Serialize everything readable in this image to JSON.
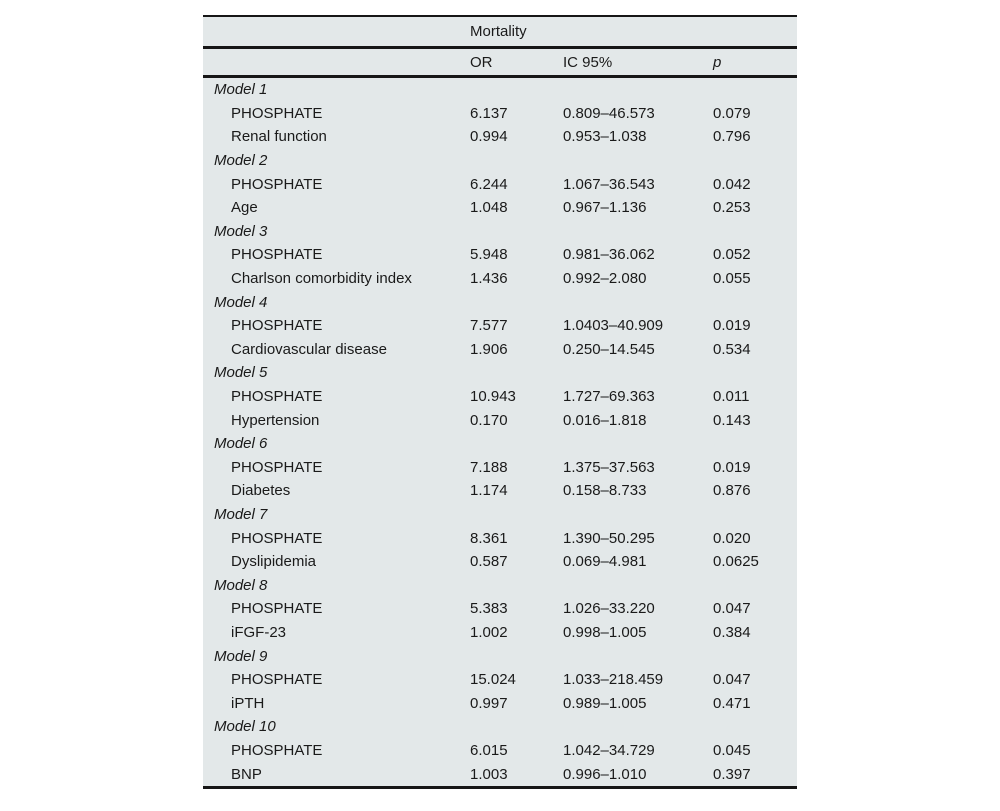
{
  "colors": {
    "page_background": "#ffffff",
    "table_background": "#e3e8e9",
    "rule_color": "#161616",
    "text_color": "#1a1a1a"
  },
  "table": {
    "group_header": "Mortality",
    "columns": {
      "label": "",
      "or": "OR",
      "ic": "IC 95%",
      "p": "p"
    },
    "rows": [
      {
        "type": "model",
        "label": "Model 1",
        "or": "",
        "ic": "",
        "p": ""
      },
      {
        "type": "var",
        "label": "PHOSPHATE",
        "or": "6.137",
        "ic": "0.809–46.573",
        "p": "0.079"
      },
      {
        "type": "var",
        "label": "Renal function",
        "or": "0.994",
        "ic": "0.953–1.038",
        "p": "0.796"
      },
      {
        "type": "model",
        "label": "Model 2",
        "or": "",
        "ic": "",
        "p": ""
      },
      {
        "type": "var",
        "label": "PHOSPHATE",
        "or": "6.244",
        "ic": "1.067–36.543",
        "p": "0.042"
      },
      {
        "type": "var",
        "label": "Age",
        "or": "1.048",
        "ic": "0.967–1.136",
        "p": "0.253"
      },
      {
        "type": "model",
        "label": "Model 3",
        "or": "",
        "ic": "",
        "p": ""
      },
      {
        "type": "var",
        "label": "PHOSPHATE",
        "or": "5.948",
        "ic": "0.981–36.062",
        "p": "0.052"
      },
      {
        "type": "var",
        "label": "Charlson comorbidity index",
        "or": "1.436",
        "ic": "0.992–2.080",
        "p": "0.055"
      },
      {
        "type": "model",
        "label": "Model 4",
        "or": "",
        "ic": "",
        "p": ""
      },
      {
        "type": "var",
        "label": "PHOSPHATE",
        "or": "7.577",
        "ic": "1.0403–40.909",
        "p": "0.019"
      },
      {
        "type": "var",
        "label": "Cardiovascular disease",
        "or": "1.906",
        "ic": "0.250–14.545",
        "p": "0.534"
      },
      {
        "type": "model",
        "label": "Model 5",
        "or": "",
        "ic": "",
        "p": ""
      },
      {
        "type": "var",
        "label": "PHOSPHATE",
        "or": "10.943",
        "ic": "1.727–69.363",
        "p": "0.011"
      },
      {
        "type": "var",
        "label": "Hypertension",
        "or": "0.170",
        "ic": "0.016–1.818",
        "p": "0.143"
      },
      {
        "type": "model",
        "label": "Model 6",
        "or": "",
        "ic": "",
        "p": ""
      },
      {
        "type": "var",
        "label": "PHOSPHATE",
        "or": "7.188",
        "ic": "1.375–37.563",
        "p": "0.019"
      },
      {
        "type": "var",
        "label": "Diabetes",
        "or": "1.174",
        "ic": "0.158–8.733",
        "p": "0.876"
      },
      {
        "type": "model",
        "label": "Model 7",
        "or": "",
        "ic": "",
        "p": ""
      },
      {
        "type": "var",
        "label": "PHOSPHATE",
        "or": "8.361",
        "ic": "1.390–50.295",
        "p": "0.020"
      },
      {
        "type": "var",
        "label": "Dyslipidemia",
        "or": "0.587",
        "ic": "0.069–4.981",
        "p": "0.0625"
      },
      {
        "type": "model",
        "label": "Model 8",
        "or": "",
        "ic": "",
        "p": ""
      },
      {
        "type": "var",
        "label": "PHOSPHATE",
        "or": "5.383",
        "ic": "1.026–33.220",
        "p": "0.047"
      },
      {
        "type": "var",
        "label": "iFGF-23",
        "or": "1.002",
        "ic": "0.998–1.005",
        "p": "0.384"
      },
      {
        "type": "model",
        "label": "Model 9",
        "or": "",
        "ic": "",
        "p": ""
      },
      {
        "type": "var",
        "label": "PHOSPHATE",
        "or": "15.024",
        "ic": "1.033–218.459",
        "p": "0.047"
      },
      {
        "type": "var",
        "label": "iPTH",
        "or": "0.997",
        "ic": "0.989–1.005",
        "p": "0.471"
      },
      {
        "type": "model",
        "label": "Model 10",
        "or": "",
        "ic": "",
        "p": ""
      },
      {
        "type": "var",
        "label": "PHOSPHATE",
        "or": "6.015",
        "ic": "1.042–34.729",
        "p": "0.045"
      },
      {
        "type": "var",
        "label": "BNP",
        "or": "1.003",
        "ic": "0.996–1.010",
        "p": "0.397"
      }
    ]
  }
}
